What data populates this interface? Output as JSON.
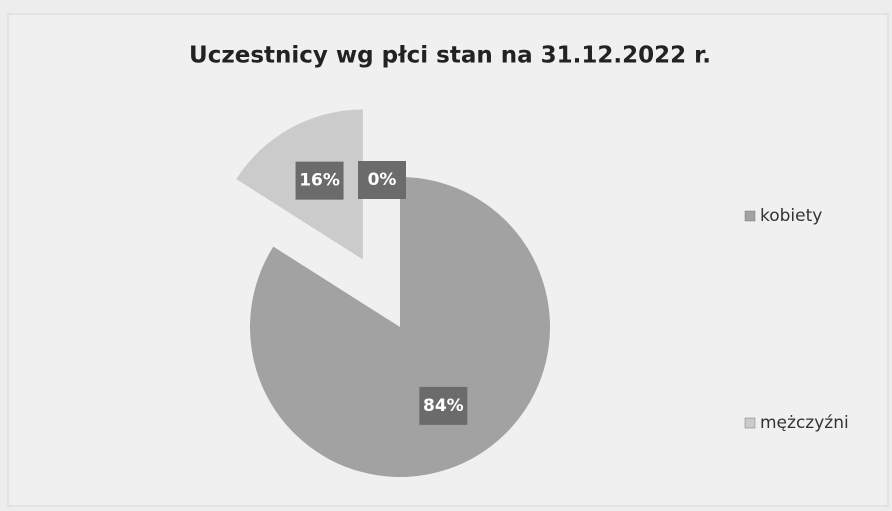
{
  "chart_data": {
    "type": "pie",
    "title": "Uczestnicy wg płci stan na 31.12.2022 r.",
    "categories": [
      "kobiety",
      "mężczyźni",
      null
    ],
    "values": [
      84,
      16,
      0
    ],
    "value_labels": [
      "84%",
      "16%",
      "0%"
    ],
    "colors": [
      "#a2a2a2",
      "#cbcbcb",
      "#7a7a7a"
    ],
    "legend": "right"
  }
}
